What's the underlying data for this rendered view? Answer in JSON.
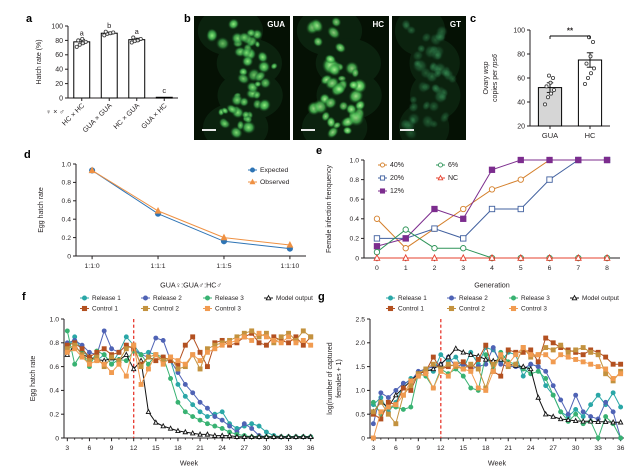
{
  "figure": {
    "panels": {
      "a": {
        "label": "a"
      },
      "b": {
        "label": "b",
        "images": [
          {
            "label": "GUA"
          },
          {
            "label": "HC"
          },
          {
            "label": "GT"
          }
        ],
        "has_scale_bars": true
      },
      "c": {
        "label": "c"
      },
      "d": {
        "label": "d"
      },
      "e": {
        "label": "e"
      },
      "f": {
        "label": "f"
      },
      "g": {
        "label": "g"
      }
    }
  },
  "chart_data": [
    {
      "panel": "a",
      "type": "bar",
      "ylabel": "Hatch rate (%)",
      "xlabel": "♀ × ♂",
      "categories": [
        "HC × HC",
        "GUA × GUA",
        "HC × GUA",
        "GUA × HC"
      ],
      "values": [
        78,
        90,
        81,
        1
      ],
      "errors": [
        3,
        1.5,
        2,
        0.5
      ],
      "letters": [
        "a",
        "b",
        "a",
        "c"
      ],
      "bar_fills": [
        "#ffffff",
        "#ffffff",
        "#ffffff",
        "#3a3a3a"
      ],
      "dots": [
        [
          71,
          74,
          76,
          78,
          80,
          82
        ],
        [
          87,
          89,
          90,
          91,
          92
        ],
        [
          77,
          79,
          80,
          82,
          84
        ],
        []
      ],
      "ylim": [
        0,
        100
      ],
      "yticks": [
        0,
        20,
        40,
        60,
        80,
        100
      ],
      "yticklabels": [
        "0",
        "20",
        "40",
        "60",
        "80",
        "100"
      ],
      "rotate_xticklabels": true
    },
    {
      "panel": "c",
      "type": "bar",
      "ylabel_rich": [
        [
          {
            "t": "Ovary ",
            "i": false
          },
          {
            "t": "wsp",
            "i": true
          }
        ],
        [
          {
            "t": "copies per ",
            "i": false
          },
          {
            "t": "rps6",
            "i": true
          }
        ]
      ],
      "categories": [
        "GUA",
        "HC"
      ],
      "values": [
        52,
        75
      ],
      "errors": [
        4,
        6
      ],
      "bar_fills": [
        "#d6d6d6",
        "#ffffff"
      ],
      "dots": [
        [
          38,
          44,
          47,
          50,
          53,
          56,
          60,
          62
        ],
        [
          55,
          60,
          64,
          68,
          72,
          78,
          90,
          94
        ]
      ],
      "significance": "**",
      "ylim": [
        20,
        100
      ],
      "yticks": [
        20,
        40,
        60,
        80,
        100
      ],
      "yticklabels": [
        "20",
        "40",
        "60",
        "80",
        "100"
      ]
    },
    {
      "panel": "d",
      "type": "line",
      "ylabel": "Egg hatch rate",
      "xlabel": "GUA♀:GUA♂:HC♂",
      "categories": [
        "1:1:0",
        "1:1:1",
        "1:1:5",
        "1:1:10"
      ],
      "ylim": [
        0,
        1.0
      ],
      "yticks": [
        0,
        0.2,
        0.4,
        0.6,
        0.8,
        1.0
      ],
      "yticklabels": [
        "0",
        "0.2",
        "0.4",
        "0.6",
        "0.8",
        "1.0"
      ],
      "legend": "inside-tr",
      "series": [
        {
          "name": "Expected",
          "color": "#2e74b5",
          "marker": "circle",
          "filled": true,
          "values": [
            0.93,
            0.46,
            0.16,
            0.08
          ]
        },
        {
          "name": "Observed",
          "color": "#ef9143",
          "marker": "triangle",
          "filled": true,
          "values": [
            0.93,
            0.49,
            0.2,
            0.12
          ]
        }
      ]
    },
    {
      "panel": "e",
      "type": "line",
      "ylabel": "Female infection frenquency",
      "xlabel": "Generation",
      "x": [
        0,
        1,
        2,
        3,
        4,
        5,
        6,
        7,
        8
      ],
      "xticks": [
        0,
        1,
        2,
        3,
        4,
        5,
        6,
        7,
        8
      ],
      "xticklabels": [
        "0",
        "1",
        "2",
        "3",
        "4",
        "5",
        "6",
        "7",
        "8"
      ],
      "ylim": [
        0,
        1.0
      ],
      "yticks": [
        0,
        0.2,
        0.4,
        0.6,
        0.8,
        1.0
      ],
      "yticklabels": [
        "0",
        "0.2",
        "0.4",
        "0.6",
        "0.8",
        "1.0"
      ],
      "legend": "inside-tl-2col",
      "series": [
        {
          "name": "40%",
          "color": "#d47f2a",
          "marker": "circle",
          "filled": false,
          "values": [
            0.4,
            0.1,
            0.3,
            0.5,
            0.7,
            0.8,
            1.0,
            1.0,
            1.0
          ]
        },
        {
          "name": "20%",
          "color": "#41609f",
          "marker": "square",
          "filled": false,
          "values": [
            0.2,
            0.2,
            0.3,
            0.2,
            0.5,
            0.5,
            0.8,
            1.0,
            1.0
          ]
        },
        {
          "name": "12%",
          "color": "#7c2d8e",
          "marker": "square",
          "filled": true,
          "values": [
            0.12,
            0.2,
            0.5,
            0.4,
            0.9,
            1.0,
            1.0,
            1.0,
            1.0
          ]
        },
        {
          "name": "6%",
          "color": "#2e9458",
          "marker": "circle",
          "filled": false,
          "values": [
            0.06,
            0.29,
            0.1,
            0.1,
            0,
            0,
            0,
            0,
            0
          ]
        },
        {
          "name": "NC",
          "color": "#e6402e",
          "marker": "triangle",
          "filled": false,
          "values": [
            0,
            0,
            0,
            0,
            0,
            0,
            0,
            0,
            0
          ]
        }
      ]
    },
    {
      "panel": "f",
      "type": "line",
      "ylabel": "Egg hatch rate",
      "xlabel": "Week",
      "x": [
        3,
        4,
        5,
        6,
        7,
        8,
        9,
        10,
        11,
        12,
        13,
        14,
        15,
        16,
        17,
        18,
        19,
        20,
        21,
        22,
        23,
        24,
        25,
        26,
        27,
        28,
        29,
        30,
        31,
        32,
        33,
        34,
        35,
        36
      ],
      "xticks": [
        3,
        6,
        9,
        12,
        15,
        18,
        21,
        24,
        27,
        30,
        33,
        36
      ],
      "xticklabels": [
        "3",
        "6",
        "9",
        "12",
        "15",
        "18",
        "21",
        "24",
        "27",
        "30",
        "33",
        "36"
      ],
      "ylim": [
        0,
        1.0
      ],
      "yticks": [
        0,
        0.2,
        0.4,
        0.6,
        0.8,
        1.0
      ],
      "yticklabels": [
        "0",
        "0.2",
        "0.4",
        "0.6",
        "0.8",
        "1.0"
      ],
      "legend": "top-grid",
      "vline": {
        "x": 12,
        "color": "#e8392f"
      },
      "series": [
        {
          "name": "Release 1",
          "color": "#2aa7a7",
          "marker": "circle",
          "filled": true,
          "values": [
            0.75,
            0.85,
            0.73,
            0.68,
            0.65,
            0.7,
            0.62,
            0.72,
            0.85,
            0.78,
            0.7,
            0.72,
            0.7,
            0.65,
            0.65,
            0.45,
            0.35,
            0.28,
            0.22,
            0.18,
            0.2,
            0.22,
            0.12,
            0.08,
            0.1,
            0.12,
            0.1,
            0.05,
            0.02,
            0.01,
            0.01,
            0.01,
            0.01,
            0.01
          ]
        },
        {
          "name": "Release 2",
          "color": "#4f63b5",
          "marker": "circle",
          "filled": true,
          "values": [
            0.8,
            0.82,
            0.78,
            0.72,
            0.7,
            0.9,
            0.75,
            0.72,
            0.78,
            0.75,
            0.7,
            0.68,
            0.84,
            0.82,
            0.65,
            0.55,
            0.45,
            0.38,
            0.3,
            0.25,
            0.18,
            0.15,
            0.1,
            0.05,
            0.12,
            0.08,
            0.02,
            0.01,
            0.01,
            0.01,
            0.01,
            0.01,
            0.01,
            0.01
          ]
        },
        {
          "name": "Release 3",
          "color": "#38b272",
          "marker": "circle",
          "filled": true,
          "values": [
            0.9,
            0.62,
            0.72,
            0.6,
            0.73,
            0.7,
            0.62,
            0.66,
            0.65,
            0.73,
            0.7,
            0.62,
            0.7,
            0.68,
            0.5,
            0.3,
            0.22,
            0.18,
            0.15,
            0.12,
            0.1,
            0.08,
            0.05,
            0.03,
            0.02,
            0.01,
            0.01,
            0.01,
            0.01,
            0.01,
            0.01,
            0.01,
            0.01,
            0.01
          ]
        },
        {
          "name": "Model output",
          "color": "#111111",
          "marker": "triangle",
          "filled": false,
          "values": [
            0.7,
            0.78,
            0.7,
            0.68,
            0.66,
            0.65,
            0.67,
            0.65,
            0.7,
            0.58,
            0.65,
            0.22,
            0.13,
            0.1,
            0.08,
            0.06,
            0.05,
            0.04,
            0.03,
            0.03,
            0.02,
            0.02,
            0.02,
            0.01,
            0.01,
            0.01,
            0.01,
            0.01,
            0.01,
            0.01,
            0.01,
            0.01,
            0.01,
            0.01
          ]
        },
        {
          "name": "Control 1",
          "color": "#b35020",
          "marker": "square",
          "filled": true,
          "values": [
            0.78,
            0.8,
            0.75,
            0.68,
            0.72,
            0.75,
            0.7,
            0.72,
            0.78,
            0.75,
            0.62,
            0.68,
            0.65,
            0.68,
            0.65,
            0.62,
            0.78,
            0.85,
            0.72,
            0.6,
            0.8,
            0.82,
            0.78,
            0.8,
            0.85,
            0.88,
            0.8,
            0.78,
            0.85,
            0.82,
            0.8,
            0.85,
            0.78,
            0.85
          ]
        },
        {
          "name": "Control 2",
          "color": "#c3923f",
          "marker": "square",
          "filled": true,
          "values": [
            0.75,
            0.78,
            0.7,
            0.65,
            0.68,
            0.6,
            0.68,
            0.65,
            0.75,
            0.78,
            0.6,
            0.68,
            0.7,
            0.65,
            0.68,
            0.58,
            0.6,
            0.7,
            0.58,
            0.75,
            0.78,
            0.8,
            0.82,
            0.85,
            0.88,
            0.9,
            0.85,
            0.88,
            0.8,
            0.85,
            0.88,
            0.82,
            0.9,
            0.85
          ]
        },
        {
          "name": "Control 3",
          "color": "#f19b50",
          "marker": "square",
          "filled": true,
          "values": [
            0.72,
            0.75,
            0.68,
            0.62,
            0.65,
            0.62,
            0.55,
            0.62,
            0.52,
            0.78,
            0.45,
            0.58,
            0.7,
            0.62,
            0.68,
            0.65,
            0.62,
            0.7,
            0.65,
            0.72,
            0.75,
            0.78,
            0.8,
            0.82,
            0.85,
            0.82,
            0.88,
            0.85,
            0.82,
            0.8,
            0.85,
            0.8,
            0.82,
            0.78
          ]
        }
      ]
    },
    {
      "panel": "g",
      "type": "line",
      "ylabel_lines": [
        "log(number of captured",
        "females + 1)"
      ],
      "xlabel": "Week",
      "x": [
        3,
        4,
        5,
        6,
        7,
        8,
        9,
        10,
        11,
        12,
        13,
        14,
        15,
        16,
        17,
        18,
        19,
        20,
        21,
        22,
        23,
        24,
        25,
        26,
        27,
        28,
        29,
        30,
        31,
        32,
        33,
        34,
        35,
        36
      ],
      "xticks": [
        3,
        6,
        9,
        12,
        15,
        18,
        21,
        24,
        27,
        30,
        33,
        36
      ],
      "xticklabels": [
        "3",
        "6",
        "9",
        "12",
        "15",
        "18",
        "21",
        "24",
        "27",
        "30",
        "33",
        "36"
      ],
      "ylim": [
        0,
        2.5
      ],
      "yticks": [
        0,
        0.5,
        1.0,
        1.5,
        2.0,
        2.5
      ],
      "yticklabels": [
        "0",
        "0.5",
        "1.0",
        "1.5",
        "2.0",
        "2.5"
      ],
      "legend": "top-grid",
      "vline": {
        "x": 12,
        "color": "#e8392f"
      },
      "series": [
        {
          "name": "Release 1",
          "color": "#2aa7a7",
          "marker": "circle",
          "filled": true,
          "values": [
            0.7,
            0.85,
            0.55,
            0.75,
            1.1,
            1.25,
            1.3,
            1.45,
            1.4,
            1.75,
            1.6,
            1.7,
            1.45,
            1.8,
            1.55,
            1.9,
            1.85,
            1.6,
            1.8,
            1.75,
            1.3,
            1.55,
            1.5,
            1.1,
            0.9,
            0.55,
            0.45,
            0.6,
            0.45,
            0.7,
            0.9,
            0.7,
            0.95,
            0.65
          ]
        },
        {
          "name": "Release 2",
          "color": "#4f63b5",
          "marker": "circle",
          "filled": true,
          "values": [
            0.3,
            0.95,
            0.85,
            1.0,
            1.15,
            1.2,
            1.4,
            1.45,
            1.5,
            1.55,
            1.7,
            1.5,
            1.55,
            1.45,
            1.5,
            1.55,
            1.9,
            1.55,
            1.5,
            1.5,
            1.45,
            1.55,
            1.5,
            1.4,
            1.1,
            0.8,
            0.5,
            0.9,
            0.55,
            0.45,
            0.4,
            0.75,
            0.55,
            0.0
          ]
        },
        {
          "name": "Release 3",
          "color": "#38b272",
          "marker": "circle",
          "filled": true,
          "values": [
            0.75,
            0.5,
            0.65,
            0.65,
            0.6,
            0.65,
            1.35,
            1.3,
            1.05,
            1.45,
            1.35,
            1.45,
            1.3,
            1.05,
            1.0,
            1.75,
            1.45,
            1.8,
            1.6,
            1.55,
            1.45,
            1.35,
            1.4,
            1.25,
            0.9,
            0.55,
            0.35,
            0.5,
            0.3,
            0.35,
            0.0,
            0.45,
            0.3,
            0.0
          ]
        },
        {
          "name": "Model output",
          "color": "#111111",
          "marker": "triangle",
          "filled": false,
          "values": [
            0.55,
            0.75,
            0.65,
            0.9,
            1.05,
            1.2,
            1.35,
            1.4,
            1.45,
            1.55,
            1.7,
            1.88,
            1.8,
            1.75,
            1.72,
            1.65,
            1.62,
            1.65,
            1.55,
            1.52,
            1.5,
            1.45,
            0.85,
            0.5,
            0.45,
            0.4,
            0.38,
            0.36,
            0.35,
            0.35,
            0.34,
            0.34,
            0.33,
            0.33
          ]
        },
        {
          "name": "Control 1",
          "color": "#b35020",
          "marker": "square",
          "filled": true,
          "values": [
            0.5,
            0.4,
            0.75,
            0.7,
            1.05,
            1.0,
            1.35,
            1.4,
            1.7,
            1.45,
            1.5,
            1.55,
            1.6,
            1.45,
            1.65,
            1.95,
            1.4,
            1.3,
            1.85,
            1.8,
            1.8,
            1.85,
            1.6,
            2.1,
            2.0,
            1.9,
            1.85,
            1.8,
            1.75,
            1.85,
            1.8,
            1.7,
            1.55,
            1.55
          ]
        },
        {
          "name": "Control 2",
          "color": "#c3923f",
          "marker": "square",
          "filled": true,
          "values": [
            0.55,
            0.75,
            0.5,
            0.3,
            0.9,
            1.1,
            1.35,
            1.45,
            1.55,
            1.45,
            1.55,
            1.5,
            1.45,
            1.55,
            1.45,
            1.05,
            1.55,
            1.7,
            1.5,
            1.55,
            1.9,
            1.7,
            1.75,
            1.9,
            1.85,
            1.95,
            1.8,
            1.85,
            1.9,
            1.8,
            1.75,
            1.35,
            1.2,
            1.4
          ]
        },
        {
          "name": "Control 3",
          "color": "#f19b50",
          "marker": "square",
          "filled": true,
          "values": [
            0.0,
            0.55,
            0.65,
            0.7,
            0.9,
            1.2,
            1.3,
            1.35,
            1.05,
            1.4,
            1.3,
            1.55,
            1.45,
            1.4,
            1.05,
            1.0,
            1.4,
            1.75,
            1.55,
            1.75,
            1.9,
            1.75,
            1.75,
            1.75,
            1.6,
            1.75,
            1.7,
            1.65,
            1.6,
            1.55,
            1.5,
            1.45,
            1.25,
            1.35
          ]
        }
      ]
    }
  ]
}
